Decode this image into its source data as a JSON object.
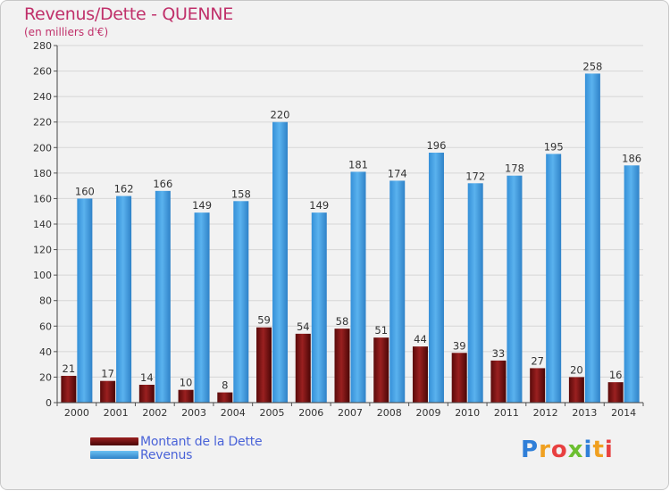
{
  "header": {
    "title": "Revenus/Dette - QUENNE",
    "subtitle": "(en milliers d'€)"
  },
  "chart_data": {
    "type": "bar",
    "categories": [
      "2000",
      "2001",
      "2002",
      "2003",
      "2004",
      "2005",
      "2006",
      "2007",
      "2008",
      "2009",
      "2010",
      "2011",
      "2012",
      "2013",
      "2014"
    ],
    "series": [
      {
        "name": "Montant de la Dette",
        "color": "#7a1010",
        "values": [
          21,
          17,
          14,
          10,
          8,
          59,
          54,
          58,
          51,
          44,
          39,
          33,
          27,
          20,
          16
        ]
      },
      {
        "name": "Revenus",
        "color": "#4aa3e6",
        "values": [
          160,
          162,
          166,
          149,
          158,
          220,
          149,
          181,
          174,
          196,
          172,
          178,
          195,
          258,
          186
        ]
      }
    ],
    "yticks": [
      0,
      20,
      40,
      60,
      80,
      100,
      120,
      140,
      160,
      180,
      200,
      220,
      240,
      260,
      280
    ],
    "ylim": [
      0,
      280
    ],
    "grid": true,
    "legend_position": "bottom-left"
  },
  "logo": {
    "letters": [
      "P",
      "r",
      "o",
      "x",
      "i",
      "t",
      "i"
    ],
    "colors": [
      "#2f7fd8",
      "#f0a020",
      "#e84040",
      "#6cbf30",
      "#2f7fd8",
      "#f0a020",
      "#e84040"
    ]
  }
}
